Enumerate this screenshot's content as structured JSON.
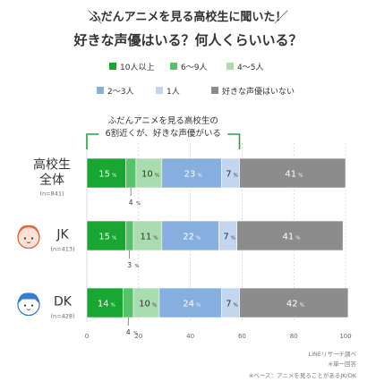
{
  "header": {
    "title": "ふだんアニメを見る高校生に聞いた！",
    "subtitle": "好きな声優はいる？何人くらいいる？"
  },
  "colors": {
    "ten_plus": "#1aa632",
    "six_nine": "#58c26a",
    "four_five": "#a9dcae",
    "two_three": "#86aede",
    "one": "#c3d6f0",
    "none": "#8c8c8c",
    "grid": "#cccccc",
    "callout": "#21a536"
  },
  "chart_data": {
    "type": "bar",
    "orientation": "horizontal",
    "stacked": true,
    "legend_placement": "top",
    "xlim": [
      0,
      100
    ],
    "xticks": [
      "0",
      "20",
      "40",
      "60",
      "80",
      "100"
    ],
    "categories": [
      {
        "label_lines": [
          "高校生",
          "全体"
        ],
        "n": "(n=841)",
        "icon": ""
      },
      {
        "label_lines": [
          "JK"
        ],
        "n": "(n=413)",
        "icon": "girl-face-icon"
      },
      {
        "label_lines": [
          "DK"
        ],
        "n": "(n=428)",
        "icon": "boy-face-icon"
      }
    ],
    "series": [
      {
        "name": "10人以上",
        "color_key": "ten_plus",
        "values": [
          15,
          15,
          14
        ],
        "labels": [
          "15",
          "15",
          "14"
        ]
      },
      {
        "name": "6～9人",
        "color_key": "six_nine",
        "values": [
          4,
          3,
          4
        ],
        "labels": [
          "4",
          "3",
          "4"
        ]
      },
      {
        "name": "4～5人",
        "color_key": "four_five",
        "values": [
          10,
          11,
          10
        ],
        "labels": [
          "10",
          "11",
          "10"
        ]
      },
      {
        "name": "2～3人",
        "color_key": "two_three",
        "values": [
          23,
          22,
          24
        ],
        "labels": [
          "23",
          "22",
          "24"
        ]
      },
      {
        "name": "1人",
        "color_key": "one",
        "values": [
          7,
          7,
          7
        ],
        "labels": [
          "7",
          "7",
          "7"
        ]
      },
      {
        "name": "好きな声優はいない",
        "color_key": "none",
        "values": [
          41,
          41,
          42
        ],
        "labels": [
          "41",
          "41",
          "42"
        ]
      }
    ],
    "unit": "%",
    "annotation": {
      "lines": [
        "ふだんアニメを見る高校生の",
        "6割近くが、好きな声優がいる"
      ],
      "bracket_from": 0,
      "bracket_to": 59
    }
  },
  "footnotes": {
    "source": "LINEリサーチ調べ",
    "note1": "※単一回答",
    "note2": "※ベース：アニメを見ることがあるJK/DK"
  }
}
